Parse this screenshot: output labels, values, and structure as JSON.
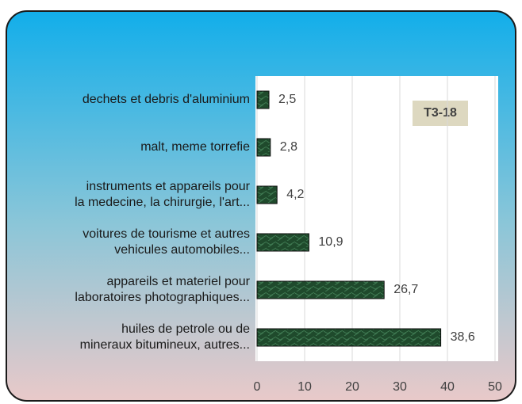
{
  "chart_data": {
    "type": "bar",
    "orientation": "horizontal",
    "annotation": "T3-18",
    "categories": [
      "dechets et debris d'aluminium",
      "malt, meme torrefie",
      "instruments et appareils pour\nla medecine, la chirurgie, l'art...",
      "voitures de tourisme et autres\nvehicules automobiles...",
      "appareils et materiel pour\nlaboratoires photographiques...",
      "huiles de petrole ou de\nmineraux bitumineux, autres..."
    ],
    "values": [
      2.5,
      2.8,
      4.2,
      10.9,
      26.7,
      38.6
    ],
    "value_labels": [
      "2,5",
      "2,8",
      "4,2",
      "10,9",
      "26,7",
      "38,6"
    ],
    "color": "#1f4a2c",
    "xlim": [
      0,
      50
    ],
    "xticks": [
      0,
      10,
      20,
      30,
      40,
      50
    ],
    "grid": true
  }
}
